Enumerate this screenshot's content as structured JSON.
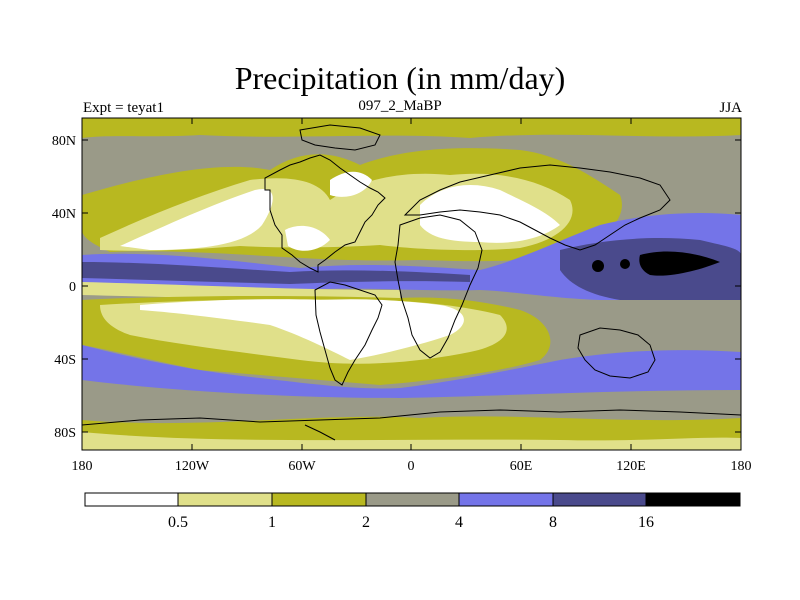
{
  "header": {
    "title": "Precipitation (in mm/day)",
    "left_label": "Expt = teyat1",
    "center_label": "097_2_MaBP",
    "right_label": "JJA"
  },
  "axes": {
    "y_ticks": [
      "80N",
      "40N",
      "0",
      "40S",
      "80S"
    ],
    "x_ticks": [
      "180",
      "120W",
      "60W",
      "0",
      "60E",
      "120E",
      "180"
    ]
  },
  "legend": {
    "levels": [
      "0.5",
      "1",
      "2",
      "4",
      "8",
      "16"
    ],
    "colors": [
      "#ffffff",
      "#e0e08a",
      "#b8b820",
      "#9a9a88",
      "#7474e8",
      "#4a4a8c",
      "#000000"
    ]
  },
  "colors": {
    "white": "#ffffff",
    "light_yellow": "#e0e08a",
    "olive": "#b8b820",
    "grey": "#9a9a88",
    "blue": "#7474e8",
    "dark_blue": "#4a4a8c",
    "black": "#000000"
  }
}
